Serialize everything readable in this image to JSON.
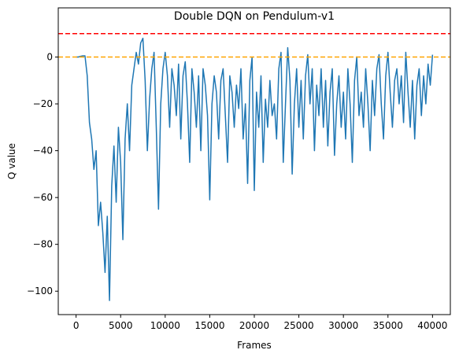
{
  "chart_data": {
    "type": "line",
    "title": "Double DQN on Pendulum-v1",
    "xlabel": "Frames",
    "ylabel": "Q value",
    "x": [
      0,
      250,
      500,
      750,
      1000,
      1250,
      1500,
      1750,
      2000,
      2250,
      2500,
      2750,
      3000,
      3250,
      3500,
      3750,
      4000,
      4250,
      4500,
      4750,
      5000,
      5250,
      5500,
      5750,
      6000,
      6250,
      6500,
      6750,
      7000,
      7250,
      7500,
      7750,
      8000,
      8250,
      8500,
      8750,
      9000,
      9250,
      9500,
      9750,
      10000,
      10250,
      10500,
      10750,
      11000,
      11250,
      11500,
      11750,
      12000,
      12250,
      12500,
      12750,
      13000,
      13250,
      13500,
      13750,
      14000,
      14250,
      14500,
      14750,
      15000,
      15250,
      15500,
      15750,
      16000,
      16250,
      16500,
      16750,
      17000,
      17250,
      17500,
      17750,
      18000,
      18250,
      18500,
      18750,
      19000,
      19250,
      19500,
      19750,
      20000,
      20250,
      20500,
      20750,
      21000,
      21250,
      21500,
      21750,
      22000,
      22250,
      22500,
      22750,
      23000,
      23250,
      23500,
      23750,
      24000,
      24250,
      24500,
      24750,
      25000,
      25250,
      25500,
      25750,
      26000,
      26250,
      26500,
      26750,
      27000,
      27250,
      27500,
      27750,
      28000,
      28250,
      28500,
      28750,
      29000,
      29250,
      29500,
      29750,
      30000,
      30250,
      30500,
      30750,
      31000,
      31250,
      31500,
      31750,
      32000,
      32250,
      32500,
      32750,
      33000,
      33250,
      33500,
      33750,
      34000,
      34250,
      34500,
      34750,
      35000,
      35250,
      35500,
      35750,
      36000,
      36250,
      36500,
      36750,
      37000,
      37250,
      37500,
      37750,
      38000,
      38250,
      38500,
      38750,
      39000,
      39250,
      39500,
      39750,
      40000
    ],
    "series": [
      {
        "color": "#1f77b4",
        "values": [
          0,
          0,
          0.3,
          0.5,
          0.5,
          -8,
          -28,
          -35,
          -48,
          -40,
          -72,
          -62,
          -75,
          -92,
          -68,
          -104,
          -55,
          -38,
          -62,
          -30,
          -45,
          -78,
          -35,
          -20,
          -40,
          -12,
          -5,
          2,
          -3,
          6,
          8,
          -10,
          -40,
          -18,
          -5,
          2,
          -30,
          -65,
          -20,
          -5,
          2,
          -8,
          -30,
          -5,
          -12,
          -25,
          -3,
          -35,
          -8,
          -2,
          -20,
          -45,
          -5,
          -15,
          -30,
          -8,
          -40,
          -5,
          -12,
          -25,
          -61,
          -20,
          -8,
          -15,
          -35,
          -10,
          -5,
          -25,
          -45,
          -8,
          -15,
          -30,
          -12,
          -22,
          -5,
          -35,
          -20,
          -54,
          -10,
          0,
          -57,
          -15,
          -30,
          -8,
          -45,
          -18,
          -30,
          -10,
          -25,
          -20,
          -35,
          -5,
          2,
          -45,
          -20,
          4,
          -10,
          -50,
          -20,
          -5,
          -30,
          -10,
          -35,
          -8,
          1,
          -20,
          -5,
          -40,
          -12,
          -25,
          -5,
          -30,
          -10,
          -38,
          -15,
          -5,
          -42,
          -20,
          -8,
          -30,
          -15,
          -35,
          -5,
          -20,
          -45,
          -10,
          0,
          -25,
          -15,
          -30,
          -5,
          -20,
          -40,
          -10,
          -25,
          -5,
          1,
          -20,
          -35,
          -8,
          2,
          -15,
          -30,
          -10,
          -5,
          -20,
          -8,
          -28,
          2,
          -15,
          -30,
          -10,
          -35,
          -12,
          -5,
          -25,
          -8,
          -20,
          -3,
          -12,
          1
        ]
      }
    ],
    "hlines": [
      {
        "value": 10,
        "color": "red"
      },
      {
        "value": 0,
        "color": "orange"
      }
    ],
    "xlim": [
      -2000,
      42000
    ],
    "xticks": [
      0,
      5000,
      10000,
      15000,
      20000,
      25000,
      30000,
      35000,
      40000
    ],
    "ylim": [
      -110,
      21
    ],
    "yticks": [
      {
        "value": -100,
        "label": "−100"
      },
      {
        "value": -80,
        "label": "−80"
      },
      {
        "value": -60,
        "label": "−60"
      },
      {
        "value": -40,
        "label": "−40"
      },
      {
        "value": -20,
        "label": "−20"
      },
      0
    ]
  }
}
